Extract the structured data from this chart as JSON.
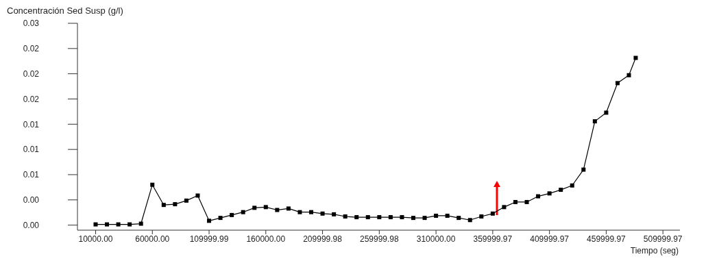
{
  "chart_data": {
    "type": "line",
    "ylabel": "Concentración Sed Susp (g/l)",
    "xlabel": "Tiempo (seg)",
    "x": [
      10000,
      20000,
      30000,
      40000,
      50000,
      60000,
      70000,
      80000,
      90000,
      100000,
      110000,
      120000,
      130000,
      140000,
      150000,
      160000,
      170000,
      180000,
      190000,
      200000,
      210000,
      220000,
      230000,
      240000,
      250000,
      260000,
      270000,
      280000,
      290000,
      300000,
      310000,
      320000,
      330000,
      340000,
      350000,
      360000,
      370000,
      380000,
      390000,
      400000,
      410000,
      420000,
      430000,
      440000,
      450000,
      460000,
      470000,
      480000,
      486000
    ],
    "series": [
      {
        "color": "#000000",
        "values": [
          0.0001,
          0.0001,
          0.0001,
          0.0001,
          0.0002,
          0.0056,
          0.0028,
          0.0029,
          0.0034,
          0.0041,
          0.0006,
          0.001,
          0.0014,
          0.0018,
          0.0024,
          0.0025,
          0.0021,
          0.0023,
          0.0018,
          0.0018,
          0.0016,
          0.0015,
          0.0012,
          0.0011,
          0.0011,
          0.0011,
          0.0011,
          0.0011,
          0.001,
          0.001,
          0.0013,
          0.0013,
          0.001,
          0.0007,
          0.0012,
          0.0016,
          0.0025,
          0.0032,
          0.0032,
          0.004,
          0.0044,
          0.0049,
          0.0055,
          0.0077,
          0.0144,
          0.0156,
          0.0197,
          0.0208,
          0.0232
        ]
      }
    ],
    "xlim": [
      -6000,
      525000
    ],
    "ylim": [
      -0.0007,
      0.028
    ],
    "xticks": [
      {
        "value": 10000,
        "label": "10000.00"
      },
      {
        "value": 60000,
        "label": "60000.00"
      },
      {
        "value": 109999.99,
        "label": "109999.99"
      },
      {
        "value": 160000,
        "label": "160000.00"
      },
      {
        "value": 209999.98,
        "label": "209999.98"
      },
      {
        "value": 259999.98,
        "label": "259999.98"
      },
      {
        "value": 310000,
        "label": "310000.00"
      },
      {
        "value": 359999.97,
        "label": "359999.97"
      },
      {
        "value": 409999.97,
        "label": "409999.97"
      },
      {
        "value": 459999.97,
        "label": "459999.97"
      },
      {
        "value": 509999.97,
        "label": "509999.97"
      }
    ],
    "yticks": [
      {
        "value": 0,
        "label": "0.00"
      },
      {
        "value": 0.0035,
        "label": "0.00"
      },
      {
        "value": 0.007,
        "label": "0.01"
      },
      {
        "value": 0.0105,
        "label": "0.01"
      },
      {
        "value": 0.014,
        "label": "0.01"
      },
      {
        "value": 0.0175,
        "label": "0.02"
      },
      {
        "value": 0.021,
        "label": "0.02"
      },
      {
        "value": 0.0245,
        "label": "0.02"
      },
      {
        "value": 0.028,
        "label": "0.03"
      }
    ],
    "marker": "square",
    "line_style": "solid",
    "grid": false,
    "legend": false
  }
}
